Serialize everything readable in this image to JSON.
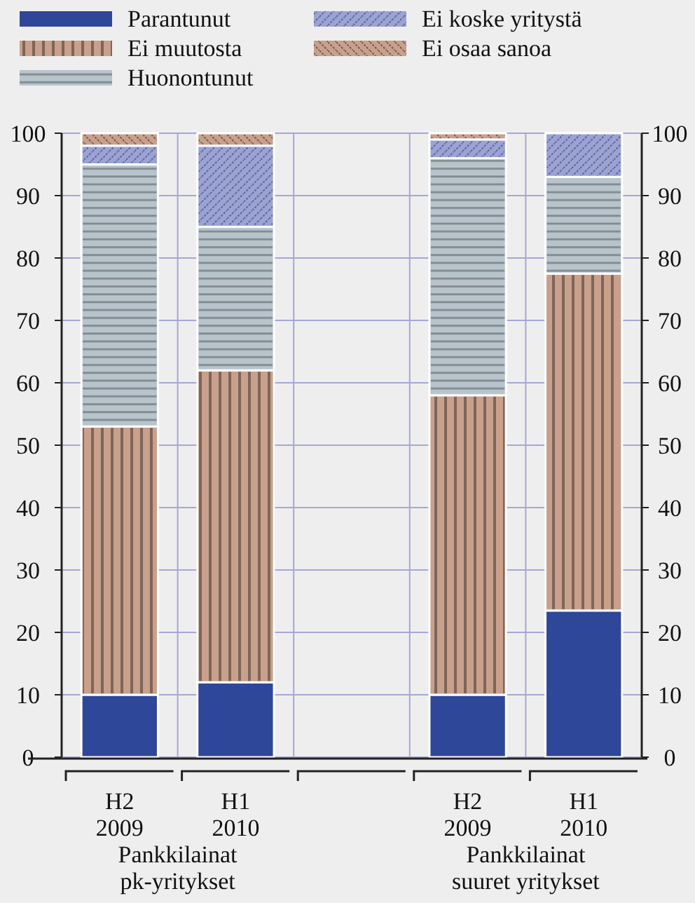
{
  "chart_data": {
    "type": "bar",
    "stacked": true,
    "categories": [
      "H2\n2009",
      "H1\n2010",
      null,
      "H2\n2009",
      "H1\n2010"
    ],
    "series": [
      {
        "name": "Parantunut",
        "color": "#2e4799",
        "values": [
          10,
          12,
          null,
          10,
          23.5
        ]
      },
      {
        "name": "Ei muutosta",
        "color": "#c9a08c",
        "values": [
          43,
          50,
          null,
          48,
          54
        ]
      },
      {
        "name": "Huonontunut",
        "color": "#b8c4cc",
        "values": [
          42,
          23,
          null,
          38,
          15.5
        ]
      },
      {
        "name": "Ei koske yritystä",
        "color": "#9aa2d6",
        "values": [
          3,
          13,
          null,
          3,
          7
        ]
      },
      {
        "name": "Ei osaa sanoa",
        "color": "#c9a08c",
        "values": [
          2,
          2,
          null,
          1,
          0
        ]
      }
    ],
    "ylim": [
      0,
      100
    ],
    "yticks": [
      0,
      10,
      20,
      30,
      40,
      50,
      60,
      70,
      80,
      90,
      100
    ],
    "y2lim": [
      0,
      100
    ],
    "y2ticks": [
      0,
      10,
      20,
      30,
      40,
      50,
      60,
      70,
      80,
      90,
      100
    ],
    "grid": true,
    "legend": "top left",
    "annotations": [
      "Pankkilainat\npk-yritykset",
      "Pankkilainat\nsuuret yritykset"
    ]
  }
}
